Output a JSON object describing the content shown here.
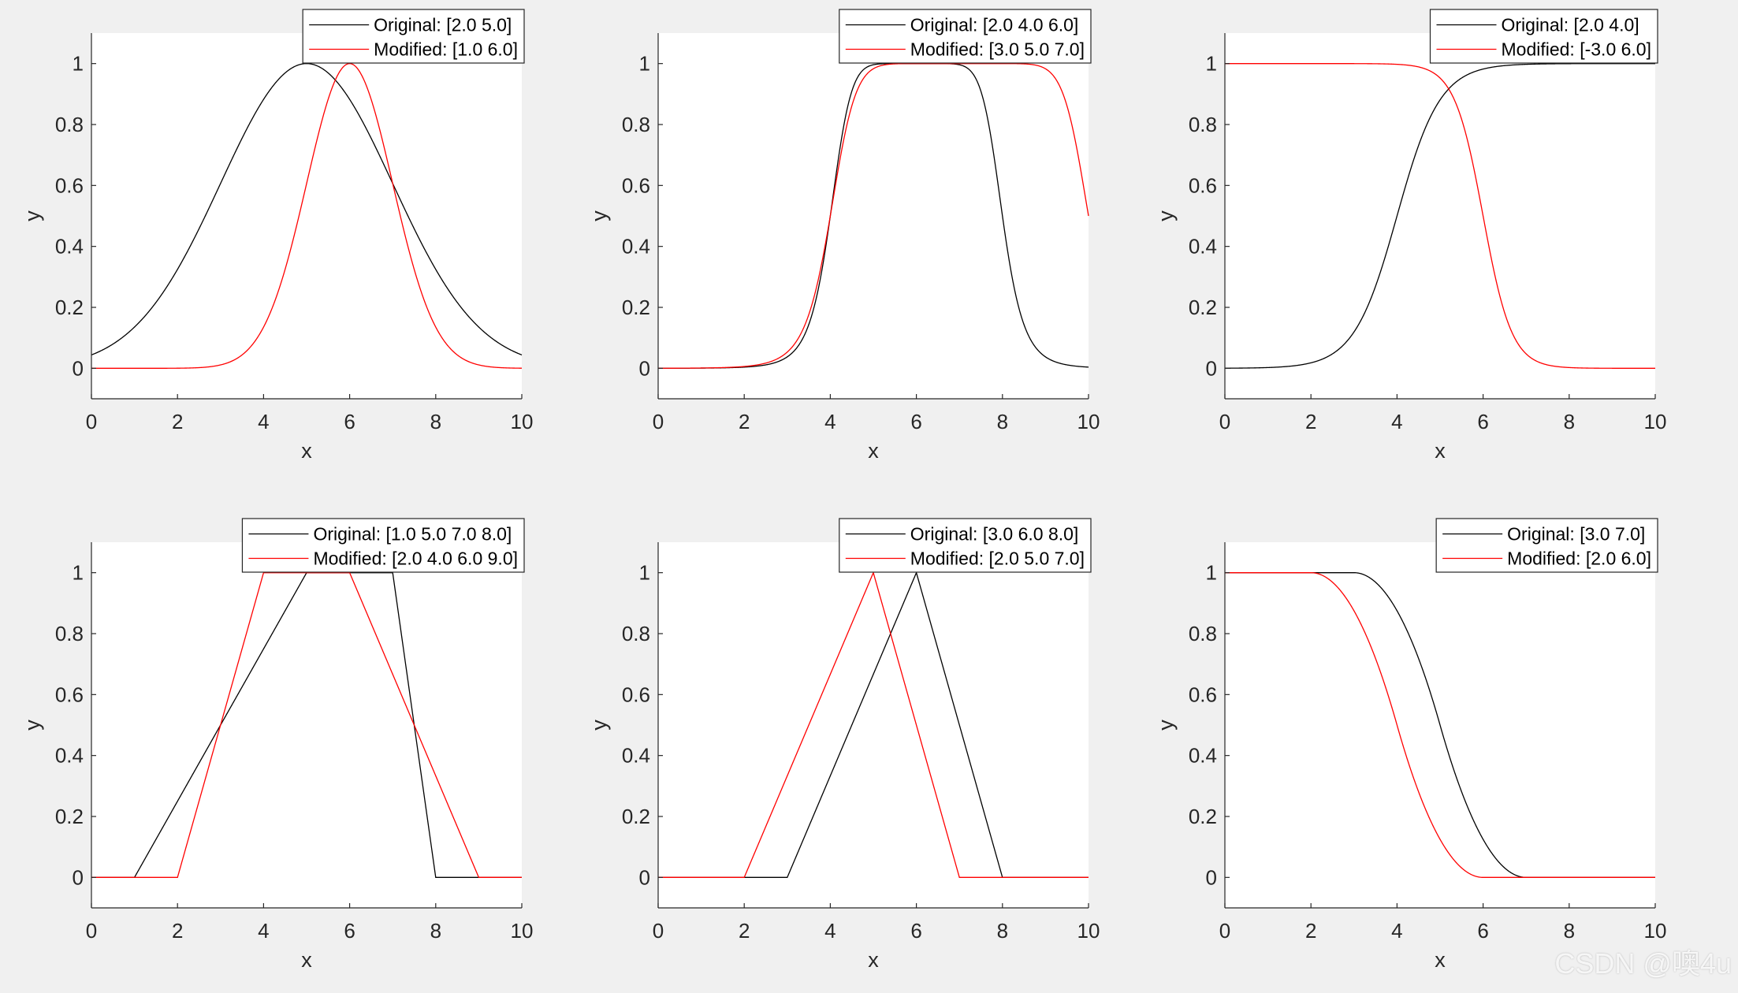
{
  "figure": {
    "background": "#f0f0f0",
    "axes_background": "#ffffff"
  },
  "colors": {
    "original": "#000000",
    "modified": "#ff0000",
    "axis": "#262626"
  },
  "watermark": "CSDN @噢4u",
  "chart_data": [
    {
      "type": "line",
      "mf": "gaussmf",
      "xlabel": "x",
      "ylabel": "y",
      "xlim": [
        0,
        10
      ],
      "ylim": [
        -0.1,
        1.1
      ],
      "xticks": [
        0,
        2,
        4,
        6,
        8,
        10
      ],
      "yticks": [
        0,
        0.2,
        0.4,
        0.6,
        0.8,
        1
      ],
      "ytick_labels": [
        "0",
        "0.2",
        "0.4",
        "0.6",
        "0.8",
        "1"
      ],
      "legend_position": "top-right",
      "series": [
        {
          "name": "Original: [2.0 5.0]",
          "color": "#000000",
          "params": [
            2,
            5
          ]
        },
        {
          "name": "Modified: [1.0 6.0]",
          "color": "#ff0000",
          "params": [
            1,
            6
          ]
        }
      ]
    },
    {
      "type": "line",
      "mf": "gbellmf",
      "xlabel": "x",
      "ylabel": "y",
      "xlim": [
        0,
        10
      ],
      "ylim": [
        -0.1,
        1.1
      ],
      "xticks": [
        0,
        2,
        4,
        6,
        8,
        10
      ],
      "yticks": [
        0,
        0.2,
        0.4,
        0.6,
        0.8,
        1
      ],
      "ytick_labels": [
        "0",
        "0.2",
        "0.4",
        "0.6",
        "0.8",
        "1"
      ],
      "legend_position": "top-right",
      "series": [
        {
          "name": "Original: [2.0 4.0 6.0]",
          "color": "#000000",
          "params": [
            2,
            4,
            6
          ]
        },
        {
          "name": "Modified: [3.0 5.0 7.0]",
          "color": "#ff0000",
          "params": [
            3,
            5,
            7
          ]
        }
      ]
    },
    {
      "type": "line",
      "mf": "sigmf",
      "xlabel": "x",
      "ylabel": "y",
      "xlim": [
        0,
        10
      ],
      "ylim": [
        -0.1,
        1.1
      ],
      "xticks": [
        0,
        2,
        4,
        6,
        8,
        10
      ],
      "yticks": [
        0,
        0.2,
        0.4,
        0.6,
        0.8,
        1
      ],
      "ytick_labels": [
        "0",
        "0.2",
        "0.4",
        "0.6",
        "0.8",
        "1"
      ],
      "legend_position": "top-right",
      "series": [
        {
          "name": "Original: [2.0 4.0]",
          "color": "#000000",
          "params": [
            2,
            4
          ]
        },
        {
          "name": "Modified: [-3.0 6.0]",
          "color": "#ff0000",
          "params": [
            -3,
            6
          ]
        }
      ]
    },
    {
      "type": "line",
      "mf": "trapmf",
      "xlabel": "x",
      "ylabel": "y",
      "xlim": [
        0,
        10
      ],
      "ylim": [
        -0.1,
        1.1
      ],
      "xticks": [
        0,
        2,
        4,
        6,
        8,
        10
      ],
      "yticks": [
        0,
        0.2,
        0.4,
        0.6,
        0.8,
        1
      ],
      "ytick_labels": [
        "0",
        "0.2",
        "0.4",
        "0.6",
        "0.8",
        "1"
      ],
      "legend_position": "top-right",
      "series": [
        {
          "name": "Original: [1.0 5.0 7.0 8.0]",
          "color": "#000000",
          "params": [
            1,
            5,
            7,
            8
          ]
        },
        {
          "name": "Modified: [2.0 4.0 6.0 9.0]",
          "color": "#ff0000",
          "params": [
            2,
            4,
            6,
            9
          ]
        }
      ]
    },
    {
      "type": "line",
      "mf": "trimf",
      "xlabel": "x",
      "ylabel": "y",
      "xlim": [
        0,
        10
      ],
      "ylim": [
        -0.1,
        1.1
      ],
      "xticks": [
        0,
        2,
        4,
        6,
        8,
        10
      ],
      "yticks": [
        0,
        0.2,
        0.4,
        0.6,
        0.8,
        1
      ],
      "ytick_labels": [
        "0",
        "0.2",
        "0.4",
        "0.6",
        "0.8",
        "1"
      ],
      "legend_position": "top-right",
      "series": [
        {
          "name": "Original: [3.0 6.0 8.0]",
          "color": "#000000",
          "params": [
            3,
            6,
            8
          ]
        },
        {
          "name": "Modified: [2.0 5.0 7.0]",
          "color": "#ff0000",
          "params": [
            2,
            5,
            7
          ]
        }
      ]
    },
    {
      "type": "line",
      "mf": "zmf",
      "xlabel": "x",
      "ylabel": "y",
      "xlim": [
        0,
        10
      ],
      "ylim": [
        -0.1,
        1.1
      ],
      "xticks": [
        0,
        2,
        4,
        6,
        8,
        10
      ],
      "yticks": [
        0,
        0.2,
        0.4,
        0.6,
        0.8,
        1
      ],
      "ytick_labels": [
        "0",
        "0.2",
        "0.4",
        "0.6",
        "0.8",
        "1"
      ],
      "legend_position": "top-right",
      "series": [
        {
          "name": "Original: [3.0 7.0]",
          "color": "#000000",
          "params": [
            3,
            7
          ]
        },
        {
          "name": "Modified: [2.0 6.0]",
          "color": "#ff0000",
          "params": [
            2,
            6
          ]
        }
      ]
    }
  ]
}
